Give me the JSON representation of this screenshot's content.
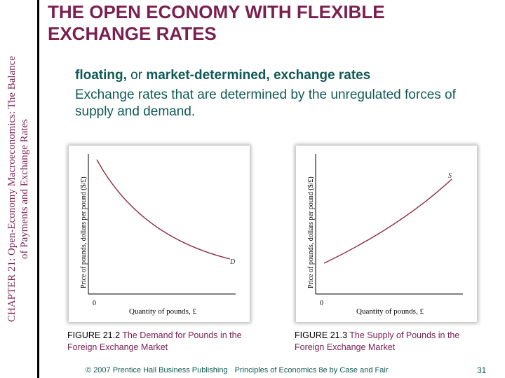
{
  "sidebar": {
    "line1": "CHAPTER 21: Open-Economy Macroeconomics: The Balance",
    "line2": "of Payments and Exchange Rates"
  },
  "title": {
    "line1": "THE OPEN ECONOMY WITH FLEXIBLE",
    "line2": "EXCHANGE RATES"
  },
  "definition": {
    "term_a": "floating,",
    "term_or": " or ",
    "term_b": "market-determined, exchange rates",
    "text": "Exchange rates that are determined by the unregulated forces of supply and demand."
  },
  "colors": {
    "title": "#7a1f4f",
    "definition": "#0f5a55",
    "curve": "#8a2a3d"
  },
  "figures": [
    {
      "ylabel": "Price of pounds, dollars per pound ($/£)",
      "xlabel": "Quantity of pounds, £",
      "origin": "0",
      "curve_label": "D",
      "caption_num": "FIGURE 21.2",
      "caption_desc": "The Demand for Pounds in the Foreign Exchange Market"
    },
    {
      "ylabel": "Price of pounds, dollars per pound ($/£)",
      "xlabel": "Quantity of pounds, £",
      "origin": "0",
      "curve_label": "S",
      "caption_num": "FIGURE 21.3",
      "caption_desc": "The Supply of Pounds in the Foreign Exchange Market"
    }
  ],
  "footer": {
    "copyright": "© 2007 Prentice Hall Business Publishing",
    "book": "Principles of Economics 8e by Case and Fair",
    "page": "31"
  }
}
